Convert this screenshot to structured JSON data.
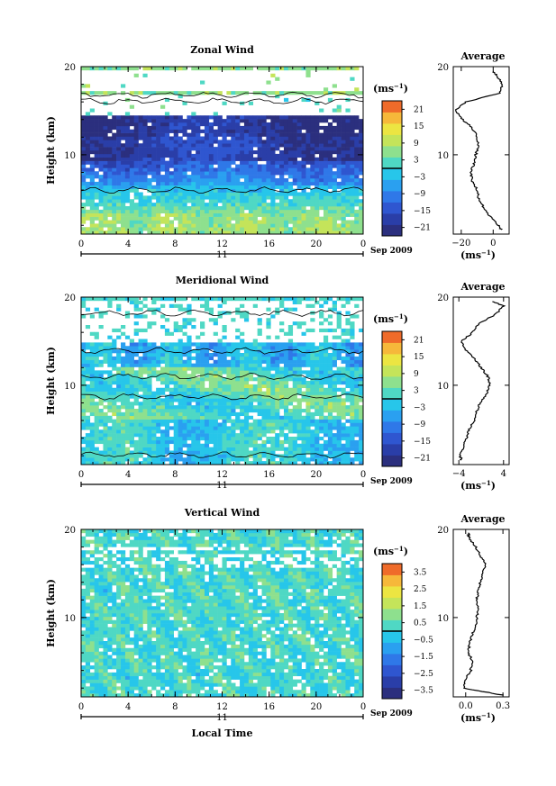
{
  "chart_data": [
    {
      "type": "heatmap",
      "title": "Zonal Wind",
      "ylabel": "Height (km)",
      "xticks": [
        "0",
        "4",
        "8",
        "12",
        "16",
        "20",
        "0"
      ],
      "yticks": [
        "10",
        "20"
      ],
      "ylim": [
        1,
        20
      ],
      "xlim": [
        0,
        24
      ],
      "date_marker": "11",
      "date_label": "Sep 2009",
      "colorbar": {
        "unit_prefix": "(ms",
        "unit_exp": "−1",
        "unit_suffix": ")",
        "ticks": [
          "21",
          "15",
          "9",
          "3",
          "−3",
          "−9",
          "−15",
          "−21"
        ],
        "range": [
          -24,
          24
        ]
      },
      "profile": {
        "title": "Average",
        "xticks": [
          "−20",
          "0"
        ],
        "xlim": [
          -25,
          10
        ],
        "yticks": [
          "10",
          "20"
        ],
        "unit_prefix": "(ms",
        "unit_exp": "−1",
        "unit_suffix": ")",
        "height": [
          1.5,
          2,
          3,
          4,
          5,
          6,
          7,
          8,
          9,
          10,
          11,
          12,
          13,
          14,
          15,
          16,
          17,
          18,
          19,
          19.5
        ],
        "value": [
          5,
          3,
          -2,
          -6,
          -9,
          -10,
          -13,
          -14,
          -12,
          -11,
          -9,
          -10,
          -13,
          -19,
          -24,
          -17,
          4,
          6,
          2,
          0
        ]
      }
    },
    {
      "type": "heatmap",
      "title": "Meridional Wind",
      "ylabel": "Height (km)",
      "xticks": [
        "0",
        "4",
        "8",
        "12",
        "16",
        "20",
        "0"
      ],
      "yticks": [
        "10",
        "20"
      ],
      "ylim": [
        1,
        20
      ],
      "xlim": [
        0,
        24
      ],
      "date_marker": "11",
      "date_label": "Sep 2009",
      "colorbar": {
        "unit_prefix": "(ms",
        "unit_exp": "−1",
        "unit_suffix": ")",
        "ticks": [
          "21",
          "15",
          "9",
          "3",
          "−3",
          "−9",
          "−15",
          "−21"
        ],
        "range": [
          -24,
          24
        ]
      },
      "profile": {
        "title": "Average",
        "xticks": [
          "−4",
          "4"
        ],
        "xlim": [
          -5,
          5
        ],
        "yticks": [
          "10",
          "20"
        ],
        "unit_prefix": "(ms",
        "unit_exp": "−1",
        "unit_suffix": ")",
        "height": [
          1.5,
          2,
          3,
          4,
          5,
          6,
          7,
          8,
          9,
          10,
          11,
          12,
          13,
          14,
          15,
          16,
          17,
          18,
          19,
          19.5
        ],
        "value": [
          -3.5,
          -3.8,
          -3.2,
          -2.6,
          -2.2,
          -1.2,
          -0.8,
          -0.2,
          1.0,
          1.5,
          1.2,
          0,
          -1.2,
          -2.8,
          -3.5,
          -1.5,
          -0.5,
          2.5,
          4.0,
          2.0
        ]
      }
    },
    {
      "type": "heatmap",
      "title": "Vertical Wind",
      "ylabel": "Height (km)",
      "xlabel": "Local Time",
      "xticks": [
        "0",
        "4",
        "8",
        "12",
        "16",
        "20",
        "0"
      ],
      "yticks": [
        "10",
        "20"
      ],
      "ylim": [
        1,
        20
      ],
      "xlim": [
        0,
        24
      ],
      "date_marker": "11",
      "date_label": "Sep 2009",
      "colorbar": {
        "unit_prefix": "(ms",
        "unit_exp": "−1",
        "unit_suffix": ")",
        "ticks": [
          "3.5",
          "2.5",
          "1.5",
          "0.5",
          "−0.5",
          "−1.5",
          "−2.5",
          "−3.5"
        ],
        "range": [
          -4,
          4
        ]
      },
      "profile": {
        "title": "Average",
        "xticks": [
          "0.0",
          "0.3"
        ],
        "xlim": [
          -0.1,
          0.35
        ],
        "yticks": [
          "10",
          "20"
        ],
        "unit_prefix": "(ms",
        "unit_exp": "−1",
        "unit_suffix": ")",
        "height": [
          1.2,
          2,
          3,
          4,
          5,
          6,
          7,
          8,
          9,
          10,
          11,
          12,
          13,
          14,
          15,
          16,
          17,
          18,
          19,
          19.6
        ],
        "value": [
          0.3,
          -0.02,
          0.0,
          0.04,
          0.06,
          0.02,
          0.03,
          0.05,
          0.08,
          0.09,
          0.1,
          0.09,
          0.1,
          0.12,
          0.14,
          0.16,
          0.12,
          0.08,
          0.03,
          0.02
        ]
      }
    }
  ]
}
